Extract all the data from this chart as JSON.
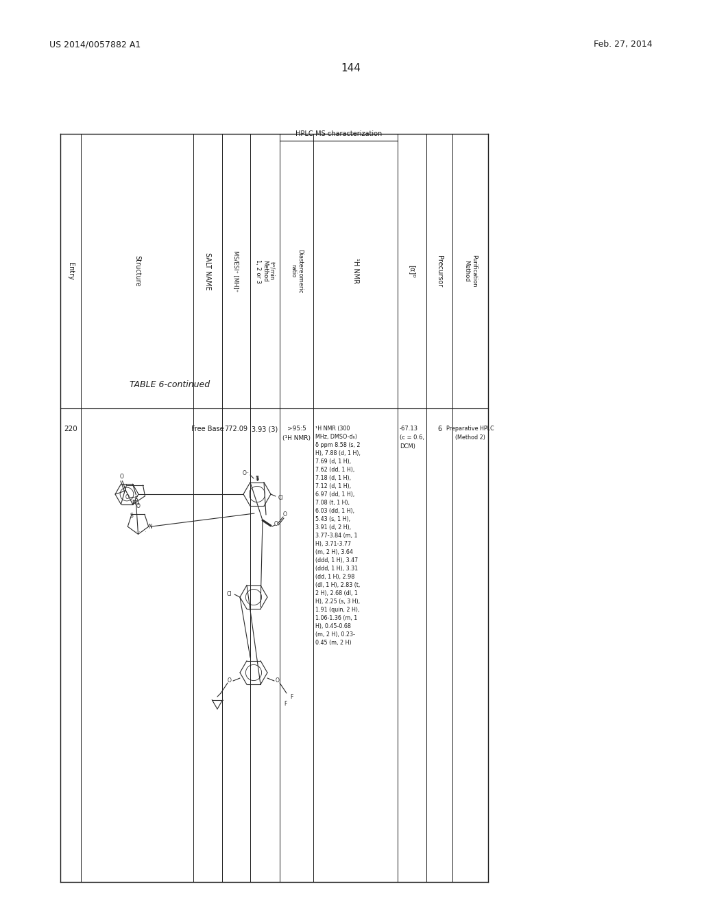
{
  "page_header_left": "US 2014/0057882 A1",
  "page_header_right": "Feb. 27, 2014",
  "page_number": "144",
  "table_title": "TABLE 6-continued",
  "table_subtitle": "HPLC-MS characterization",
  "entry": "220",
  "salt_name": "Free Base",
  "ms_esi": "772.09",
  "tR_min": "3.93 (3)",
  "diast_1": ">95:5",
  "diast_2": "(¹H NMR)",
  "nmr_lines": [
    "¹H NMR (300",
    "MHz, DMSO-d₆)",
    "δ ppm 8.58 (s, 2",
    "H), 7.88 (d, 1 H),",
    "7.69 (d, 1 H),",
    "7.62 (dd, 1 H),",
    "7.18 (d, 1 H),",
    "7.12 (d, 1 H),",
    "6.97 (dd, 1 H),",
    "7.08 (t, 1 H),",
    "6.03 (dd, 1 H),",
    "5.43 (s, 1 H),",
    "3.91 (d, 2 H),",
    "3.77-3.84 (m, 1",
    "H), 3.71-3.77",
    "(m, 2 H), 3.64",
    "(ddd, 1 H), 3.47",
    "(ddd, 1 H), 3.31",
    "(dd, 1 H), 2.98",
    "(dl, 1 H), 2.83 (t,",
    "2 H), 2.68 (dl, 1",
    "H), 2.25 (s, 3 H),",
    "1.91 (quin, 2 H),",
    "1.06-1.36 (m, 1",
    "H), 0.45-0.68",
    "(m, 2 H), 0.23-",
    "0.45 (m, 2 H)"
  ],
  "opt_rot_lines": [
    "-67.13",
    "(c = 0.6,",
    "DCM)"
  ],
  "precursor": "6",
  "purif_1": "Preparative HPLC",
  "purif_2": "(Method 2)",
  "bg_color": "#ffffff",
  "text_color": "#1a1a1a",
  "line_color": "#1a1a1a"
}
